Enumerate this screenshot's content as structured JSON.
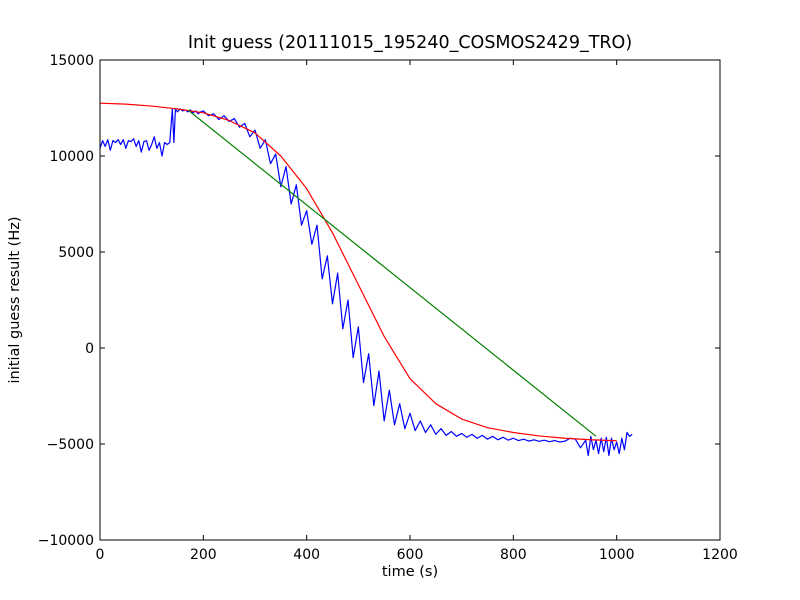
{
  "chart_data": {
    "type": "line",
    "title": "Init guess (20111015_195240_COSMOS2429_TRO)",
    "xlabel": "time (s)",
    "ylabel": "initial guess result (Hz)",
    "xlim": [
      0,
      1200
    ],
    "ylim": [
      -10000,
      15000
    ],
    "x_ticks": [
      0,
      200,
      400,
      600,
      800,
      1000,
      1200
    ],
    "x_tick_labels": [
      "0",
      "200",
      "400",
      "600",
      "800",
      "1000",
      "1200"
    ],
    "y_ticks": [
      -10000,
      -5000,
      0,
      5000,
      10000,
      15000
    ],
    "y_tick_labels": [
      "−10000",
      "−5000",
      "0",
      "5000",
      "10000",
      "15000"
    ],
    "grid": false,
    "colors": {
      "measured": "#0000ff",
      "fit": "#ff0000",
      "trend": "#008000"
    },
    "series": [
      {
        "color": "#0000ff",
        "x": [
          0,
          5,
          10,
          15,
          20,
          25,
          30,
          35,
          40,
          45,
          50,
          55,
          60,
          65,
          70,
          75,
          80,
          85,
          90,
          95,
          100,
          105,
          110,
          115,
          120,
          125,
          130,
          135,
          140,
          143,
          146,
          150,
          155,
          160,
          165,
          170,
          175,
          180,
          185,
          190,
          195,
          200,
          210,
          220,
          230,
          240,
          250,
          260,
          270,
          280,
          290,
          300,
          310,
          320,
          330,
          340,
          350,
          360,
          370,
          380,
          390,
          400,
          410,
          420,
          430,
          440,
          450,
          460,
          470,
          480,
          490,
          500,
          510,
          520,
          530,
          540,
          550,
          560,
          570,
          580,
          590,
          600,
          610,
          620,
          630,
          640,
          650,
          660,
          670,
          680,
          690,
          700,
          710,
          720,
          730,
          740,
          750,
          760,
          770,
          780,
          790,
          800,
          810,
          820,
          830,
          840,
          850,
          860,
          870,
          880,
          890,
          900,
          910,
          920,
          930,
          940,
          945,
          950,
          955,
          960,
          965,
          970,
          975,
          980,
          985,
          990,
          995,
          1000,
          1005,
          1010,
          1015,
          1020,
          1025,
          1030
        ],
        "y": [
          10400,
          10800,
          10500,
          10850,
          10300,
          10800,
          10700,
          10850,
          10600,
          10850,
          10400,
          10800,
          10750,
          10900,
          10500,
          10800,
          10200,
          10750,
          10800,
          10300,
          10600,
          11000,
          10400,
          10700,
          10000,
          10700,
          10600,
          10700,
          12450,
          10700,
          12450,
          12300,
          12450,
          12350,
          12400,
          12300,
          12400,
          12250,
          12350,
          12200,
          12300,
          12350,
          12100,
          12200,
          11900,
          12100,
          11800,
          11950,
          11500,
          11700,
          11000,
          11350,
          10400,
          10850,
          9600,
          10100,
          8400,
          9450,
          7500,
          8500,
          6400,
          7150,
          5400,
          6400,
          3600,
          4800,
          2300,
          3900,
          1000,
          2500,
          -500,
          1100,
          -1800,
          -300,
          -3000,
          -1200,
          -3800,
          -2200,
          -4000,
          -2900,
          -4200,
          -3400,
          -4300,
          -3800,
          -4400,
          -4000,
          -4500,
          -4200,
          -4550,
          -4350,
          -4600,
          -4450,
          -4650,
          -4500,
          -4700,
          -4550,
          -4750,
          -4600,
          -4780,
          -4650,
          -4800,
          -4700,
          -4820,
          -4750,
          -4850,
          -4780,
          -4860,
          -4800,
          -4880,
          -4820,
          -4900,
          -4850,
          -4700,
          -4750,
          -5200,
          -4800,
          -5600,
          -4600,
          -5300,
          -4800,
          -5500,
          -4700,
          -5400,
          -4650,
          -5600,
          -4700,
          -5300,
          -4900,
          -5500,
          -4700,
          -5300,
          -4400,
          -4600,
          -4500
        ]
      },
      {
        "color": "#ff0000",
        "x": [
          0,
          50,
          100,
          150,
          200,
          250,
          300,
          350,
          400,
          450,
          500,
          550,
          600,
          650,
          700,
          750,
          800,
          850,
          900,
          950,
          1000
        ],
        "y": [
          12750,
          12700,
          12600,
          12450,
          12250,
          11850,
          11200,
          10000,
          8300,
          6000,
          3300,
          600,
          -1600,
          -2900,
          -3700,
          -4150,
          -4400,
          -4580,
          -4700,
          -4780,
          -4830
        ]
      },
      {
        "color": "#008000",
        "x": [
          170,
          960
        ],
        "y": [
          12400,
          -4600
        ]
      }
    ]
  }
}
